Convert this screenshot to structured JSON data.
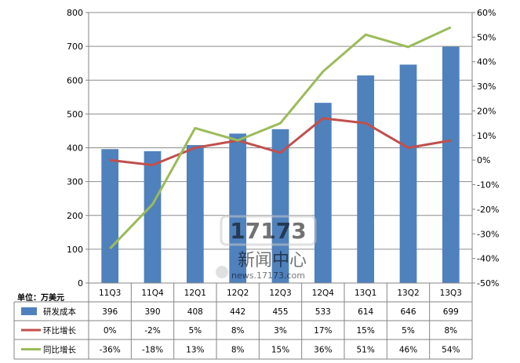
{
  "chart_data": {
    "type": "bar",
    "categories": [
      "11Q3",
      "11Q4",
      "12Q1",
      "12Q2",
      "12Q3",
      "12Q4",
      "13Q1",
      "13Q2",
      "13Q3"
    ],
    "y_left": {
      "ylim": [
        0,
        800
      ],
      "ticks": [
        "0",
        "100",
        "200",
        "300",
        "400",
        "500",
        "600",
        "700",
        "800"
      ]
    },
    "y_right": {
      "ylim": [
        -0.5,
        0.6
      ],
      "ticks": [
        "-50%",
        "-40%",
        "-30%",
        "-20%",
        "-10%",
        "0%",
        "10%",
        "20%",
        "30%",
        "40%",
        "50%",
        "60%"
      ]
    },
    "unit_label": "单位：万美元",
    "grid": true,
    "legend": "table-below",
    "series": [
      {
        "name": "研发成本",
        "type": "bar",
        "axis": "left",
        "color": "#4f81bd",
        "values": [
          396,
          390,
          408,
          442,
          455,
          533,
          614,
          646,
          699
        ],
        "labels": [
          "396",
          "390",
          "408",
          "442",
          "455",
          "533",
          "614",
          "646",
          "699"
        ]
      },
      {
        "name": "环比增长",
        "type": "line",
        "axis": "right",
        "color": "#c0504d",
        "values": [
          0.0,
          -0.02,
          0.05,
          0.08,
          0.03,
          0.17,
          0.15,
          0.05,
          0.08
        ],
        "labels": [
          "0%",
          "-2%",
          "5%",
          "8%",
          "3%",
          "17%",
          "15%",
          "5%",
          "8%"
        ]
      },
      {
        "name": "同比增长",
        "type": "line",
        "axis": "right",
        "color": "#9bbb59",
        "values": [
          -0.36,
          -0.18,
          0.13,
          0.08,
          0.15,
          0.36,
          0.51,
          0.46,
          0.54
        ],
        "labels": [
          "-36%",
          "-18%",
          "13%",
          "8%",
          "15%",
          "36%",
          "51%",
          "46%",
          "54%"
        ]
      }
    ]
  },
  "watermark": {
    "logo_text": "17173",
    "site_name": "新闻中心",
    "url": "news.17173.com"
  }
}
